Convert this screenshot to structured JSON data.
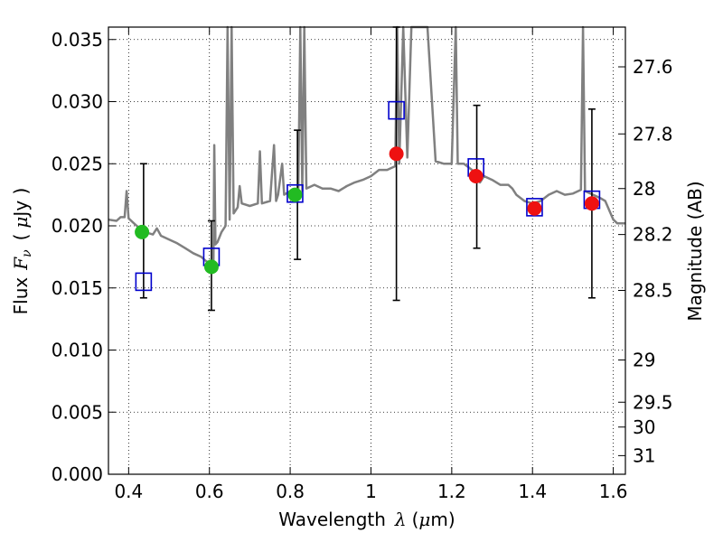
{
  "chart_data": {
    "type": "scatter",
    "xlabel": {
      "prefix": "Wavelength",
      "symbol": "λ",
      "unit_open": "(",
      "unit_mu": "μ",
      "unit_rest": "m)"
    },
    "ylabel": {
      "prefix": "Flux",
      "symbol": "F",
      "sub": "ν",
      "unit_open": "(",
      "unit_mu": "μ",
      "unit_rest": "Jy )"
    },
    "y2label": "Magnitude (AB)",
    "xlim": [
      0.35,
      1.63
    ],
    "ylim": [
      0.0,
      0.036
    ],
    "x_ticks": [
      {
        "value": 0.4,
        "label": "0.4"
      },
      {
        "value": 0.6,
        "label": "0.6"
      },
      {
        "value": 0.8,
        "label": "0.8"
      },
      {
        "value": 1.0,
        "label": "1"
      },
      {
        "value": 1.2,
        "label": "1.2"
      },
      {
        "value": 1.4,
        "label": "1.4"
      },
      {
        "value": 1.6,
        "label": "1.6"
      }
    ],
    "y_ticks": [
      {
        "value": 0.0,
        "label": "0.000"
      },
      {
        "value": 0.005,
        "label": "0.005"
      },
      {
        "value": 0.01,
        "label": "0.010"
      },
      {
        "value": 0.015,
        "label": "0.015"
      },
      {
        "value": 0.02,
        "label": "0.020"
      },
      {
        "value": 0.025,
        "label": "0.025"
      },
      {
        "value": 0.03,
        "label": "0.030"
      },
      {
        "value": 0.035,
        "label": "0.035"
      }
    ],
    "y2_ticks": [
      {
        "flux": 0.0328,
        "label": "27.6"
      },
      {
        "flux": 0.0274,
        "label": "27.8"
      },
      {
        "flux": 0.023,
        "label": "28"
      },
      {
        "flux": 0.0193,
        "label": "28.2"
      },
      {
        "flux": 0.0148,
        "label": "28.5"
      },
      {
        "flux": 0.0092,
        "label": "29"
      },
      {
        "flux": 0.0058,
        "label": "29.5"
      },
      {
        "flux": 0.0038,
        "label": "30"
      },
      {
        "flux": 0.0015,
        "label": "31"
      }
    ],
    "grid": true,
    "colors": {
      "template": "#808080",
      "model_box": "#0000cc",
      "detection": "#22bb22",
      "nondetection": "#ee1111",
      "errorbar": "#000000"
    },
    "series": [
      {
        "kind": "template_spectrum",
        "points": [
          [
            0.35,
            0.0205
          ],
          [
            0.37,
            0.0204
          ],
          [
            0.38,
            0.0207
          ],
          [
            0.39,
            0.0207
          ],
          [
            0.395,
            0.0228
          ],
          [
            0.4,
            0.0206
          ],
          [
            0.41,
            0.0203
          ],
          [
            0.42,
            0.02
          ],
          [
            0.43,
            0.0197
          ],
          [
            0.44,
            0.0195
          ],
          [
            0.46,
            0.0193
          ],
          [
            0.47,
            0.0198
          ],
          [
            0.48,
            0.0192
          ],
          [
            0.5,
            0.0189
          ],
          [
            0.52,
            0.0186
          ],
          [
            0.54,
            0.0182
          ],
          [
            0.56,
            0.0178
          ],
          [
            0.58,
            0.0175
          ],
          [
            0.59,
            0.0172
          ],
          [
            0.6,
            0.017
          ],
          [
            0.605,
            0.0168
          ],
          [
            0.61,
            0.0172
          ],
          [
            0.612,
            0.0265
          ],
          [
            0.615,
            0.0185
          ],
          [
            0.62,
            0.0187
          ],
          [
            0.63,
            0.0195
          ],
          [
            0.64,
            0.02
          ],
          [
            0.645,
            0.036
          ],
          [
            0.65,
            0.0205
          ],
          [
            0.655,
            0.036
          ],
          [
            0.66,
            0.021
          ],
          [
            0.67,
            0.0215
          ],
          [
            0.675,
            0.0232
          ],
          [
            0.68,
            0.0218
          ],
          [
            0.7,
            0.0216
          ],
          [
            0.72,
            0.0218
          ],
          [
            0.725,
            0.026
          ],
          [
            0.73,
            0.0218
          ],
          [
            0.75,
            0.022
          ],
          [
            0.76,
            0.0265
          ],
          [
            0.765,
            0.022
          ],
          [
            0.77,
            0.0225
          ],
          [
            0.78,
            0.025
          ],
          [
            0.785,
            0.0225
          ],
          [
            0.8,
            0.0228
          ],
          [
            0.81,
            0.0225
          ],
          [
            0.82,
            0.0225
          ],
          [
            0.825,
            0.036
          ],
          [
            0.83,
            0.0228
          ],
          [
            0.835,
            0.036
          ],
          [
            0.84,
            0.023
          ],
          [
            0.86,
            0.0233
          ],
          [
            0.88,
            0.023
          ],
          [
            0.9,
            0.023
          ],
          [
            0.92,
            0.0228
          ],
          [
            0.94,
            0.0232
          ],
          [
            0.96,
            0.0235
          ],
          [
            0.98,
            0.0237
          ],
          [
            1.0,
            0.024
          ],
          [
            1.02,
            0.0245
          ],
          [
            1.04,
            0.0245
          ],
          [
            1.06,
            0.0248
          ],
          [
            1.065,
            0.036
          ],
          [
            1.07,
            0.025
          ],
          [
            1.08,
            0.036
          ],
          [
            1.09,
            0.0255
          ],
          [
            1.1,
            0.036
          ],
          [
            1.12,
            0.036
          ],
          [
            1.14,
            0.036
          ],
          [
            1.16,
            0.0252
          ],
          [
            1.18,
            0.025
          ],
          [
            1.2,
            0.025
          ],
          [
            1.21,
            0.036
          ],
          [
            1.215,
            0.025
          ],
          [
            1.23,
            0.025
          ],
          [
            1.25,
            0.0245
          ],
          [
            1.27,
            0.0235
          ],
          [
            1.28,
            0.024
          ],
          [
            1.3,
            0.0237
          ],
          [
            1.32,
            0.0233
          ],
          [
            1.34,
            0.0233
          ],
          [
            1.35,
            0.023
          ],
          [
            1.36,
            0.0225
          ],
          [
            1.38,
            0.022
          ],
          [
            1.4,
            0.0218
          ],
          [
            1.42,
            0.022
          ],
          [
            1.44,
            0.0225
          ],
          [
            1.46,
            0.0228
          ],
          [
            1.48,
            0.0225
          ],
          [
            1.5,
            0.0226
          ],
          [
            1.52,
            0.0229
          ],
          [
            1.525,
            0.036
          ],
          [
            1.53,
            0.0228
          ],
          [
            1.55,
            0.0225
          ],
          [
            1.57,
            0.0222
          ],
          [
            1.58,
            0.022
          ],
          [
            1.6,
            0.0205
          ],
          [
            1.61,
            0.0202
          ],
          [
            1.63,
            0.0202
          ]
        ]
      },
      {
        "kind": "model_boxes",
        "points": [
          [
            0.437,
            0.0155
          ],
          [
            0.605,
            0.0175
          ],
          [
            0.812,
            0.0226
          ],
          [
            1.063,
            0.0293
          ],
          [
            1.26,
            0.0247
          ],
          [
            1.405,
            0.0215
          ],
          [
            1.547,
            0.0221
          ]
        ]
      },
      {
        "kind": "detections",
        "points": [
          [
            0.433,
            0.0195
          ],
          [
            0.605,
            0.0167
          ],
          [
            0.812,
            0.0225
          ]
        ]
      },
      {
        "kind": "nondetections",
        "points": [
          [
            1.063,
            0.0258
          ],
          [
            1.26,
            0.024
          ],
          [
            1.405,
            0.0214
          ],
          [
            1.547,
            0.0218
          ]
        ]
      },
      {
        "kind": "errorbars",
        "bars": [
          {
            "x": 0.437,
            "low": 0.0142,
            "high": 0.025
          },
          {
            "x": 0.605,
            "low": 0.0132,
            "high": 0.0204
          },
          {
            "x": 0.818,
            "low": 0.0173,
            "high": 0.0277
          },
          {
            "x": 1.063,
            "low": 0.014,
            "high": 0.036
          },
          {
            "x": 1.262,
            "low": 0.0182,
            "high": 0.0297
          },
          {
            "x": 1.405,
            "low": 0.0213,
            "high": 0.0218
          },
          {
            "x": 1.547,
            "low": 0.0142,
            "high": 0.0294
          }
        ]
      }
    ]
  }
}
